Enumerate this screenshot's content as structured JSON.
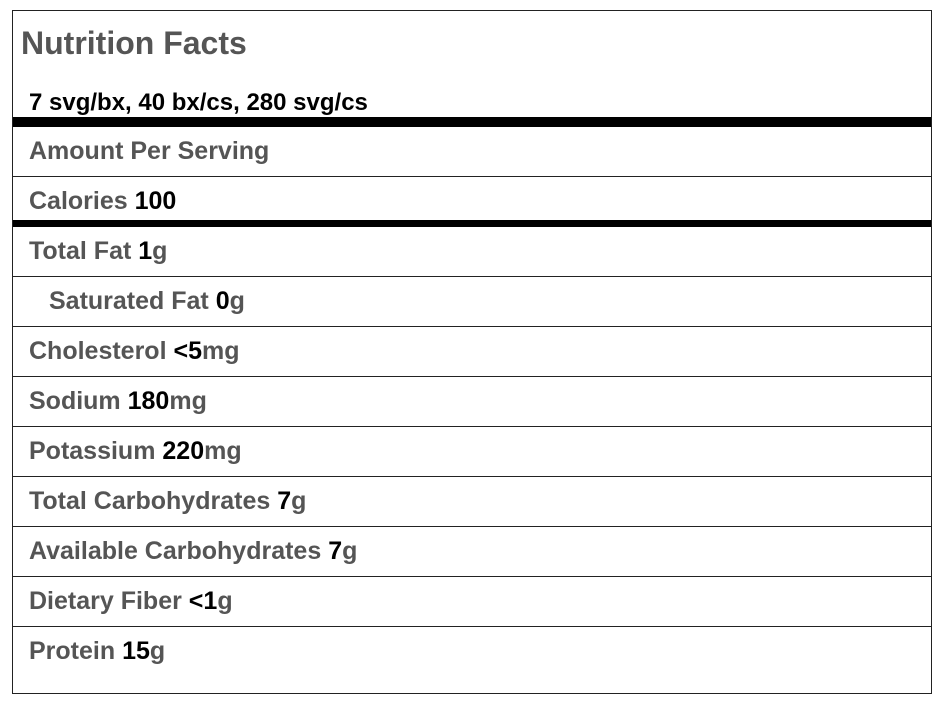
{
  "title": "Nutrition Facts",
  "serving": "7 svg/bx, 40 bx/cs, 280 svg/cs",
  "amount_header": "Amount Per Serving",
  "calories": {
    "label": "Calories",
    "amount": "100"
  },
  "rows": [
    {
      "label": "Total Fat",
      "amount": "1",
      "unit": "g"
    },
    {
      "label": "Saturated Fat",
      "amount": "0",
      "unit": "g"
    },
    {
      "label": "Cholesterol",
      "amount": "<5",
      "unit": "mg"
    },
    {
      "label": "Sodium",
      "amount": "180",
      "unit": "mg"
    },
    {
      "label": "Potassium",
      "amount": "220",
      "unit": "mg"
    },
    {
      "label": "Total Carbohydrates",
      "amount": "7",
      "unit": "g"
    },
    {
      "label": "Available Carbohydrates",
      "amount": "7",
      "unit": "g"
    },
    {
      "label": "Dietary Fiber",
      "amount": "<1",
      "unit": "g"
    },
    {
      "label": "Protein",
      "amount": "15",
      "unit": "g"
    }
  ]
}
